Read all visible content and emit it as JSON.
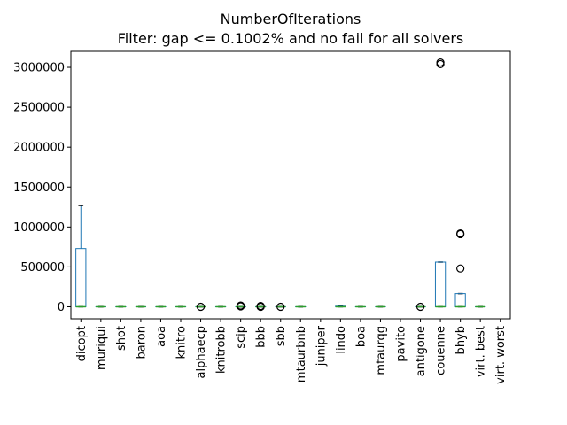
{
  "chart_data": {
    "type": "box",
    "title": "NumberOfIterations",
    "subtitle": "Filter: gap <= 0.1002% and no fail for all solvers",
    "xlabel": "",
    "ylabel": "",
    "ylim": [
      -150000,
      3200000
    ],
    "yticks": [
      0,
      500000,
      1000000,
      1500000,
      2000000,
      2500000,
      3000000
    ],
    "ytick_labels": [
      "0",
      "500000",
      "1000000",
      "1500000",
      "2000000",
      "2500000",
      "3000000"
    ],
    "grid": false,
    "colors": {
      "box": "#1f77b4",
      "median": "#2ca02c",
      "whisker": "#1f77b4",
      "cap": "#000000",
      "outlier": "#000000"
    },
    "categories": [
      "dicopt",
      "muriqui",
      "shot",
      "baron",
      "aoa",
      "knitro",
      "alphaecp",
      "knitrobb",
      "scip",
      "bbb",
      "sbb",
      "mtaurbnb",
      "juniper",
      "lindo",
      "boa",
      "mtaurqg",
      "pavito",
      "antigone",
      "couenne",
      "bhyb",
      "virt. best",
      "virt. worst"
    ],
    "boxes": [
      {
        "q1": 0,
        "median": 0,
        "q3": 730000,
        "whisker_low": 0,
        "whisker_high": 1270000,
        "outliers": []
      },
      {
        "q1": 0,
        "median": 0,
        "q3": 0,
        "whisker_low": 0,
        "whisker_high": 0,
        "outliers": []
      },
      {
        "q1": 0,
        "median": 0,
        "q3": 0,
        "whisker_low": 0,
        "whisker_high": 0,
        "outliers": []
      },
      {
        "q1": 0,
        "median": 0,
        "q3": 0,
        "whisker_low": 0,
        "whisker_high": 0,
        "outliers": []
      },
      {
        "q1": 0,
        "median": 0,
        "q3": 0,
        "whisker_low": 0,
        "whisker_high": 0,
        "outliers": []
      },
      {
        "q1": 0,
        "median": 0,
        "q3": 0,
        "whisker_low": 0,
        "whisker_high": 0,
        "outliers": []
      },
      {
        "q1": 0,
        "median": 0,
        "q3": 0,
        "whisker_low": 0,
        "whisker_high": 0,
        "outliers": [
          0
        ]
      },
      {
        "q1": 0,
        "median": 0,
        "q3": 0,
        "whisker_low": 0,
        "whisker_high": 0,
        "outliers": []
      },
      {
        "q1": 0,
        "median": 0,
        "q3": 0,
        "whisker_low": 0,
        "whisker_high": 0,
        "outliers": [
          5000,
          15000
        ]
      },
      {
        "q1": 0,
        "median": 0,
        "q3": 0,
        "whisker_low": 0,
        "whisker_high": 0,
        "outliers": [
          0,
          10000
        ]
      },
      {
        "q1": 0,
        "median": 0,
        "q3": 0,
        "whisker_low": 0,
        "whisker_high": 0,
        "outliers": [
          0
        ]
      },
      {
        "q1": 0,
        "median": 0,
        "q3": 0,
        "whisker_low": 0,
        "whisker_high": 0,
        "outliers": []
      },
      null,
      {
        "q1": 0,
        "median": 0,
        "q3": 8000,
        "whisker_low": 0,
        "whisker_high": 15000,
        "outliers": []
      },
      {
        "q1": 0,
        "median": 0,
        "q3": 0,
        "whisker_low": 0,
        "whisker_high": 0,
        "outliers": []
      },
      {
        "q1": 0,
        "median": 0,
        "q3": 0,
        "whisker_low": 0,
        "whisker_high": 0,
        "outliers": []
      },
      null,
      {
        "q1": 0,
        "median": 0,
        "q3": 0,
        "whisker_low": 0,
        "whisker_high": 0,
        "outliers": [
          0
        ]
      },
      {
        "q1": 0,
        "median": 0,
        "q3": 560000,
        "whisker_low": 0,
        "whisker_high": 560000,
        "outliers": [
          3040000,
          3060000
        ]
      },
      {
        "q1": 0,
        "median": 0,
        "q3": 165000,
        "whisker_low": 0,
        "whisker_high": 165000,
        "outliers": [
          480000,
          910000,
          920000
        ]
      },
      {
        "q1": 0,
        "median": 0,
        "q3": 0,
        "whisker_low": 0,
        "whisker_high": 0,
        "outliers": []
      },
      null
    ]
  }
}
